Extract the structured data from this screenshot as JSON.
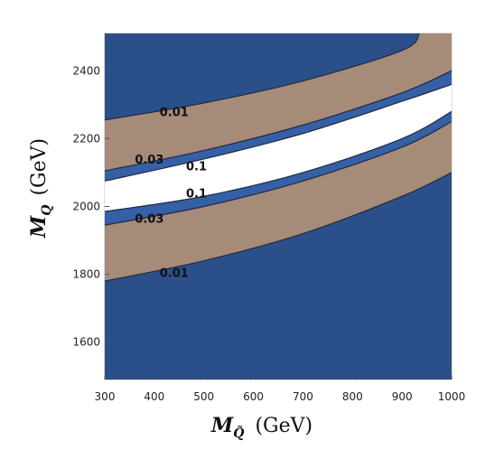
{
  "chart_data": {
    "type": "contour",
    "x_axis": {
      "range": [
        300,
        1000
      ],
      "ticks": [
        300,
        400,
        500,
        600,
        700,
        800,
        900,
        1000
      ],
      "title_symbol": "M",
      "title_subscript": "Q̃",
      "title_unit": "(GeV)"
    },
    "y_axis": {
      "range": [
        1490,
        2510
      ],
      "ticks": [
        1600,
        1800,
        2000,
        2200,
        2400
      ],
      "title_symbol": "M",
      "title_subscript": "Q",
      "title_unit": "(GeV)"
    },
    "colors": {
      "background_region": "#2b5089",
      "band_0.01": "#a68b78",
      "band_0.03": "#3560a6",
      "band_0.1": "#ffffff",
      "contour_line": "#1d2b44"
    },
    "contours": [
      {
        "label": "0.01",
        "side": "upper",
        "points": [
          [
            300,
            2255
          ],
          [
            500,
            2305
          ],
          [
            700,
            2370
          ],
          [
            900,
            2460
          ],
          [
            935,
            2510
          ]
        ]
      },
      {
        "label": "0.03",
        "side": "upper",
        "points": [
          [
            300,
            2105
          ],
          [
            500,
            2165
          ],
          [
            700,
            2240
          ],
          [
            900,
            2335
          ],
          [
            1000,
            2400
          ]
        ]
      },
      {
        "label": "0.1",
        "side": "upper",
        "points": [
          [
            300,
            2075
          ],
          [
            500,
            2140
          ],
          [
            700,
            2215
          ],
          [
            900,
            2310
          ],
          [
            1000,
            2360
          ]
        ]
      },
      {
        "label": "0.1",
        "side": "lower",
        "points": [
          [
            300,
            1985
          ],
          [
            500,
            2030
          ],
          [
            700,
            2100
          ],
          [
            900,
            2200
          ],
          [
            1000,
            2280
          ]
        ]
      },
      {
        "label": "0.03",
        "side": "lower",
        "points": [
          [
            300,
            1945
          ],
          [
            500,
            2000
          ],
          [
            700,
            2075
          ],
          [
            900,
            2175
          ],
          [
            1000,
            2250
          ]
        ]
      },
      {
        "label": "0.01",
        "side": "lower",
        "points": [
          [
            300,
            1780
          ],
          [
            500,
            1840
          ],
          [
            700,
            1920
          ],
          [
            900,
            2030
          ],
          [
            1000,
            2100
          ]
        ]
      }
    ],
    "contour_labels": [
      {
        "text": "0.01",
        "x": 440,
        "y": 2280
      },
      {
        "text": "0.03",
        "x": 390,
        "y": 2140
      },
      {
        "text": "0.1",
        "x": 485,
        "y": 2120
      },
      {
        "text": "0.1",
        "x": 485,
        "y": 2040
      },
      {
        "text": "0.03",
        "x": 390,
        "y": 1965
      },
      {
        "text": "0.01",
        "x": 440,
        "y": 1805
      }
    ]
  }
}
